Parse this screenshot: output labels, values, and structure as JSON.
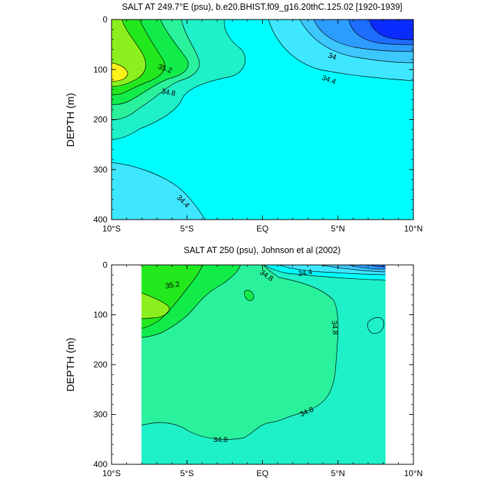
{
  "chart_data": [
    {
      "type": "contour",
      "title": "SALT AT 249.7°E (psu), b.e20.BHIST.f09_g16.20thC.125.02 [1920-1939]",
      "ylabel": "DEPTH (m)",
      "x_ticks": [
        "10°S",
        "5°S",
        "EQ",
        "5°N",
        "10°N"
      ],
      "y_ticks": [
        "0",
        "100",
        "200",
        "300",
        "400"
      ],
      "xlim": [
        -10,
        10
      ],
      "ylim": [
        400,
        0
      ],
      "contour_labels": [
        "35.2",
        "34.8",
        "34",
        "34.4",
        "34.4"
      ]
    },
    {
      "type": "contour",
      "title": "SALT AT 250 (psu), Johnson et al (2002)",
      "ylabel": "DEPTH (m)",
      "x_ticks": [
        "10°S",
        "5°S",
        "EQ",
        "5°N",
        "10°N"
      ],
      "y_ticks": [
        "0",
        "100",
        "200",
        "300",
        "400"
      ],
      "xlim": [
        -10,
        10
      ],
      "ylim": [
        400,
        0
      ],
      "data_xlim": [
        -8,
        8.3
      ],
      "data_ylim": [
        5,
        400
      ],
      "contour_labels": [
        "35.2",
        "34.8",
        "34.4",
        "34.8",
        "34.8",
        "34.8"
      ]
    }
  ],
  "colors": {
    "c_lt34": "#0a2bff",
    "c_34_0": "#1d6dff",
    "c_34_1": "#2c9cff",
    "c_34_2": "#3dc7ff",
    "c_34_4": "#3fe6ff",
    "c_34_6": "#00fdfd",
    "c_34_8": "#1ef0c8",
    "c_35_0": "#2af19c",
    "c_35_2": "#11ec4a",
    "c_35_4": "#22e81e",
    "c_35_6": "#8cf01e",
    "c_35_8": "#fff21a"
  }
}
